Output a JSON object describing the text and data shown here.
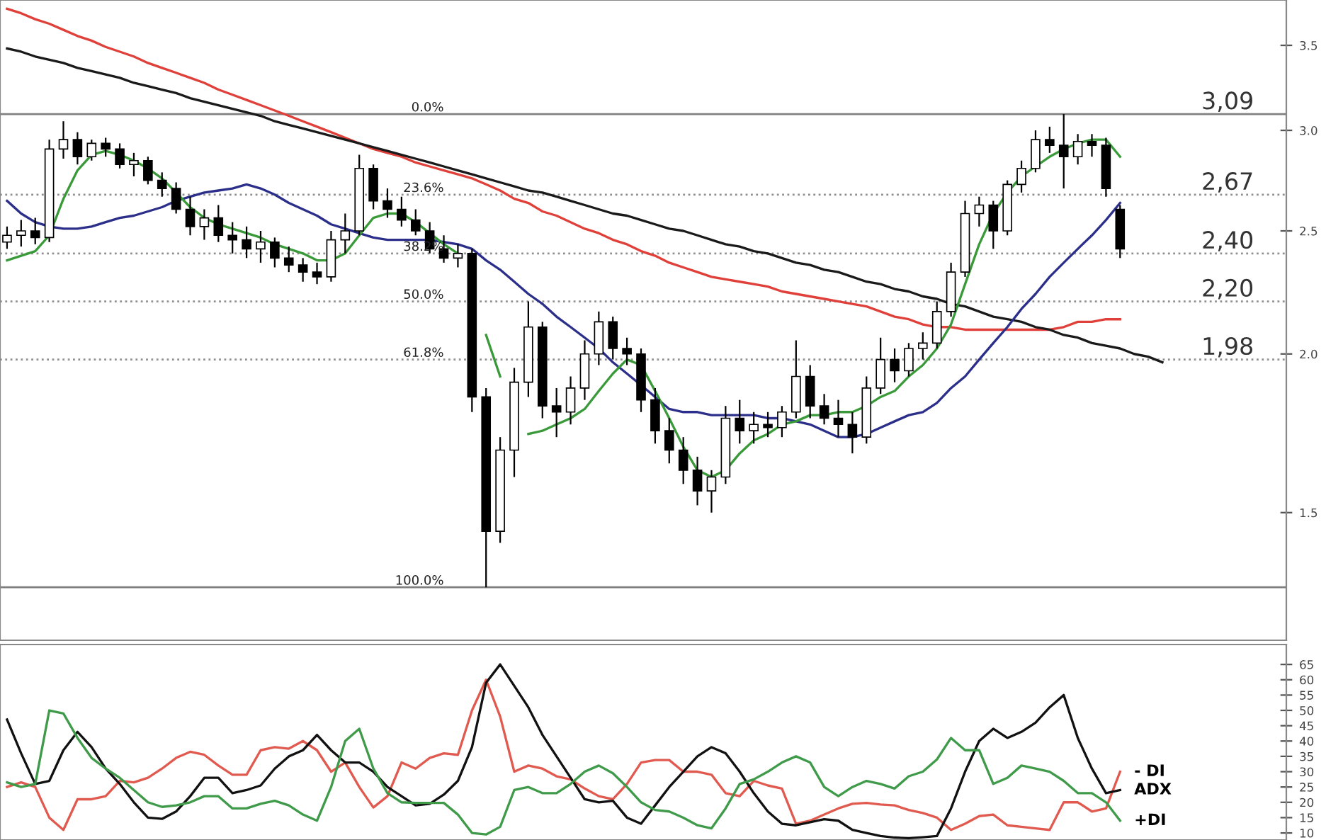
{
  "chart_data": [
    {
      "type": "candlestick",
      "categories": [
        null,
        null,
        null,
        null,
        null,
        null,
        null,
        null,
        null,
        null,
        null,
        null,
        null,
        null,
        null,
        null,
        null,
        null,
        null,
        null,
        null,
        null,
        null,
        null,
        null,
        null,
        null,
        null,
        null,
        null,
        null,
        null,
        null,
        null,
        null,
        null,
        null,
        null,
        null,
        null,
        null,
        null,
        null,
        null,
        null,
        null,
        null,
        null,
        null,
        null,
        null,
        null,
        null,
        null,
        null,
        null,
        null,
        null,
        null,
        null,
        null,
        null,
        null,
        null,
        null,
        null,
        null,
        null,
        null,
        null,
        null,
        null,
        null,
        null,
        null,
        null,
        null,
        null,
        null,
        null,
        null,
        null,
        null
      ],
      "ohlc": [
        [
          2.45,
          2.52,
          2.42,
          2.48
        ],
        [
          2.48,
          2.55,
          2.43,
          2.5
        ],
        [
          2.5,
          2.56,
          2.44,
          2.47
        ],
        [
          2.47,
          2.95,
          2.45,
          2.9
        ],
        [
          2.9,
          3.05,
          2.85,
          2.95
        ],
        [
          2.95,
          2.99,
          2.82,
          2.86
        ],
        [
          2.86,
          2.95,
          2.84,
          2.93
        ],
        [
          2.93,
          2.96,
          2.86,
          2.9
        ],
        [
          2.9,
          2.93,
          2.8,
          2.82
        ],
        [
          2.82,
          2.88,
          2.76,
          2.84
        ],
        [
          2.84,
          2.86,
          2.72,
          2.74
        ],
        [
          2.74,
          2.78,
          2.66,
          2.7
        ],
        [
          2.7,
          2.73,
          2.58,
          2.6
        ],
        [
          2.6,
          2.66,
          2.48,
          2.52
        ],
        [
          2.52,
          2.6,
          2.46,
          2.56
        ],
        [
          2.56,
          2.62,
          2.45,
          2.48
        ],
        [
          2.48,
          2.54,
          2.4,
          2.46
        ],
        [
          2.46,
          2.52,
          2.38,
          2.42
        ],
        [
          2.42,
          2.5,
          2.36,
          2.45
        ],
        [
          2.45,
          2.47,
          2.34,
          2.38
        ],
        [
          2.38,
          2.43,
          2.32,
          2.35
        ],
        [
          2.35,
          2.38,
          2.28,
          2.32
        ],
        [
          2.32,
          2.36,
          2.27,
          2.3
        ],
        [
          2.3,
          2.5,
          2.28,
          2.46
        ],
        [
          2.46,
          2.58,
          2.4,
          2.5
        ],
        [
          2.5,
          2.87,
          2.48,
          2.8
        ],
        [
          2.8,
          2.82,
          2.6,
          2.64
        ],
        [
          2.64,
          2.7,
          2.56,
          2.6
        ],
        [
          2.6,
          2.66,
          2.52,
          2.55
        ],
        [
          2.55,
          2.6,
          2.48,
          2.5
        ],
        [
          2.5,
          2.54,
          2.4,
          2.42
        ],
        [
          2.42,
          2.48,
          2.36,
          2.38
        ],
        [
          2.38,
          2.44,
          2.34,
          2.4
        ],
        [
          2.4,
          2.42,
          1.8,
          1.85
        ],
        [
          1.85,
          1.88,
          1.31,
          1.45
        ],
        [
          1.45,
          1.72,
          1.42,
          1.68
        ],
        [
          1.68,
          1.95,
          1.6,
          1.9
        ],
        [
          1.9,
          2.2,
          1.85,
          2.1
        ],
        [
          2.1,
          2.12,
          1.78,
          1.82
        ],
        [
          1.82,
          1.88,
          1.72,
          1.8
        ],
        [
          1.8,
          1.92,
          1.76,
          1.88
        ],
        [
          1.88,
          2.05,
          1.84,
          2.0
        ],
        [
          2.0,
          2.16,
          1.96,
          2.12
        ],
        [
          2.12,
          2.14,
          1.98,
          2.02
        ],
        [
          2.02,
          2.06,
          1.96,
          2.0
        ],
        [
          2.0,
          2.02,
          1.8,
          1.84
        ],
        [
          1.84,
          1.88,
          1.7,
          1.74
        ],
        [
          1.74,
          1.78,
          1.64,
          1.68
        ],
        [
          1.68,
          1.72,
          1.58,
          1.62
        ],
        [
          1.62,
          1.66,
          1.52,
          1.56
        ],
        [
          1.56,
          1.62,
          1.5,
          1.6
        ],
        [
          1.6,
          1.82,
          1.58,
          1.78
        ],
        [
          1.78,
          1.84,
          1.7,
          1.74
        ],
        [
          1.74,
          1.8,
          1.7,
          1.76
        ],
        [
          1.76,
          1.8,
          1.72,
          1.75
        ],
        [
          1.75,
          1.82,
          1.72,
          1.8
        ],
        [
          1.8,
          2.05,
          1.78,
          1.92
        ],
        [
          1.92,
          1.96,
          1.78,
          1.82
        ],
        [
          1.82,
          1.86,
          1.76,
          1.78
        ],
        [
          1.78,
          1.84,
          1.72,
          1.76
        ],
        [
          1.76,
          1.8,
          1.67,
          1.72
        ],
        [
          1.72,
          1.92,
          1.7,
          1.88
        ],
        [
          1.88,
          2.06,
          1.86,
          1.98
        ],
        [
          1.98,
          2.02,
          1.9,
          1.94
        ],
        [
          1.94,
          2.04,
          1.92,
          2.02
        ],
        [
          2.02,
          2.08,
          1.98,
          2.04
        ],
        [
          2.04,
          2.2,
          2.02,
          2.16
        ],
        [
          2.16,
          2.36,
          2.14,
          2.32
        ],
        [
          2.32,
          2.64,
          2.3,
          2.58
        ],
        [
          2.58,
          2.66,
          2.52,
          2.62
        ],
        [
          2.62,
          2.64,
          2.42,
          2.5
        ],
        [
          2.5,
          2.74,
          2.48,
          2.72
        ],
        [
          2.72,
          2.84,
          2.68,
          2.8
        ],
        [
          2.8,
          3.0,
          2.78,
          2.95
        ],
        [
          2.95,
          3.02,
          2.88,
          2.92
        ],
        [
          2.92,
          3.09,
          2.7,
          2.86
        ],
        [
          2.86,
          2.98,
          2.82,
          2.94
        ],
        [
          2.94,
          2.98,
          2.86,
          2.92
        ],
        [
          2.92,
          2.96,
          2.66,
          2.7
        ],
        [
          2.6,
          2.62,
          2.38,
          2.42
        ],
        null,
        null,
        null
      ],
      "series": [
        {
          "type": "line",
          "color": "#e0403a",
          "values": [
            3.74,
            3.71,
            3.67,
            3.64,
            3.6,
            3.56,
            3.53,
            3.49,
            3.46,
            3.43,
            3.39,
            3.36,
            3.33,
            3.3,
            3.27,
            3.23,
            3.2,
            3.17,
            3.14,
            3.11,
            3.08,
            3.05,
            3.02,
            2.99,
            2.96,
            2.93,
            2.9,
            2.88,
            2.86,
            2.83,
            2.81,
            2.79,
            2.77,
            2.75,
            2.72,
            2.69,
            2.65,
            2.63,
            2.59,
            2.57,
            2.54,
            2.51,
            2.49,
            2.46,
            2.44,
            2.41,
            2.39,
            2.36,
            2.34,
            2.32,
            2.3,
            2.29,
            2.28,
            2.27,
            2.26,
            2.24,
            2.23,
            2.22,
            2.21,
            2.2,
            2.19,
            2.18,
            2.16,
            2.14,
            2.13,
            2.11,
            2.1,
            2.1,
            2.09,
            2.09,
            2.09,
            2.09,
            2.09,
            2.09,
            2.09,
            2.1,
            2.12,
            2.12,
            2.13,
            2.13,
            null,
            null,
            null
          ]
        },
        {
          "type": "line",
          "color": "#1a1a1a",
          "values": [
            3.48,
            3.46,
            3.43,
            3.41,
            3.39,
            3.36,
            3.34,
            3.32,
            3.3,
            3.27,
            3.25,
            3.23,
            3.21,
            3.18,
            3.16,
            3.14,
            3.12,
            3.1,
            3.08,
            3.05,
            3.03,
            3.01,
            2.99,
            2.97,
            2.95,
            2.93,
            2.91,
            2.89,
            2.87,
            2.85,
            2.83,
            2.81,
            2.79,
            2.77,
            2.75,
            2.73,
            2.71,
            2.69,
            2.68,
            2.66,
            2.64,
            2.62,
            2.6,
            2.58,
            2.57,
            2.55,
            2.53,
            2.51,
            2.5,
            2.48,
            2.46,
            2.44,
            2.43,
            2.41,
            2.4,
            2.38,
            2.36,
            2.35,
            2.33,
            2.32,
            2.3,
            2.28,
            2.27,
            2.25,
            2.24,
            2.22,
            2.21,
            2.19,
            2.18,
            2.16,
            2.14,
            2.13,
            2.12,
            2.1,
            2.09,
            2.07,
            2.06,
            2.04,
            2.03,
            2.02,
            2.0,
            1.99,
            1.97
          ]
        },
        {
          "type": "line",
          "color": "#2b2f8a",
          "values": [
            2.64,
            2.58,
            2.54,
            2.52,
            2.51,
            2.51,
            2.52,
            2.54,
            2.56,
            2.57,
            2.59,
            2.61,
            2.64,
            2.66,
            2.68,
            2.69,
            2.7,
            2.72,
            2.7,
            2.67,
            2.63,
            2.6,
            2.57,
            2.53,
            2.51,
            2.49,
            2.47,
            2.46,
            2.46,
            2.46,
            2.46,
            2.45,
            2.44,
            2.42,
            2.37,
            2.33,
            2.28,
            2.23,
            2.19,
            2.14,
            2.1,
            2.06,
            2.02,
            1.97,
            1.93,
            1.89,
            1.85,
            1.81,
            1.8,
            1.8,
            1.79,
            1.79,
            1.79,
            1.79,
            1.78,
            1.78,
            1.77,
            1.76,
            1.74,
            1.72,
            1.72,
            1.73,
            1.75,
            1.77,
            1.79,
            1.8,
            1.83,
            1.88,
            1.92,
            1.98,
            2.04,
            2.1,
            2.17,
            2.23,
            2.3,
            2.36,
            2.42,
            2.48,
            2.55,
            2.63,
            null,
            null,
            null
          ]
        },
        {
          "type": "line",
          "color": "#3a9a3a",
          "values": [
            2.37,
            2.39,
            2.41,
            2.48,
            2.65,
            2.79,
            2.87,
            2.89,
            2.87,
            2.84,
            2.8,
            2.75,
            2.68,
            2.61,
            2.56,
            2.53,
            2.51,
            2.49,
            2.47,
            2.44,
            2.42,
            2.4,
            2.37,
            2.37,
            2.4,
            2.48,
            2.56,
            2.58,
            2.58,
            2.54,
            2.49,
            2.44,
            2.4,
            null,
            2.07,
            1.92,
            null,
            1.73,
            1.74,
            1.76,
            1.78,
            1.81,
            1.87,
            1.93,
            1.98,
            1.96,
            1.87,
            1.78,
            1.69,
            1.62,
            1.6,
            1.62,
            1.67,
            1.71,
            1.73,
            1.76,
            1.77,
            1.79,
            1.79,
            1.8,
            1.8,
            1.82,
            1.85,
            1.87,
            1.92,
            1.96,
            2.02,
            2.11,
            2.27,
            2.44,
            2.58,
            2.68,
            2.76,
            2.81,
            2.86,
            2.9,
            2.93,
            2.95,
            2.95,
            2.86,
            null,
            null,
            null
          ]
        }
      ],
      "log": "y",
      "ylim": [
        1.19,
        3.8
      ],
      "yticks": [
        1.5,
        {
          "value": 2,
          "label": "2.0"
        },
        2.5,
        {
          "value": 3,
          "label": "3.0"
        },
        3.5
      ],
      "ref_lines": [
        {
          "axis": "y",
          "value": 3.09,
          "label": "3,09",
          "color": "#808080",
          "line_style": "solid"
        },
        {
          "axis": "y",
          "value": 2.67,
          "label": "2,67",
          "color": "#909090",
          "line_style": "dotted"
        },
        {
          "axis": "y",
          "value": 2.4,
          "label": "2,40",
          "color": "#909090",
          "line_style": "dotted"
        },
        {
          "axis": "y",
          "value": 2.2,
          "label": "2,20",
          "color": "#909090",
          "line_style": "dotted"
        },
        {
          "axis": "y",
          "value": 1.98,
          "label": "1,98",
          "color": "#909090",
          "line_style": "dotted"
        },
        {
          "axis": "y",
          "value": 1.31,
          "color": "#808080",
          "line_style": "solid"
        }
      ],
      "annotations": [
        {
          "text": "0.0%",
          "y": 3.09
        },
        {
          "text": "23.6%",
          "y": 2.67
        },
        {
          "text": "38.2%",
          "y": 2.4
        },
        {
          "text": "50.0%",
          "y": 2.2
        },
        {
          "text": "61.8%",
          "y": 1.98
        },
        {
          "text": "100.0%",
          "y": 1.31
        }
      ],
      "tick_labels": "y"
    },
    {
      "type": "line",
      "categories": [
        null,
        null,
        null,
        null,
        null,
        null,
        null,
        null,
        null,
        null,
        null,
        null,
        null,
        null,
        null,
        null,
        null,
        null,
        null,
        null,
        null,
        null,
        null,
        null,
        null,
        null,
        null,
        null,
        null,
        null,
        null,
        null,
        null,
        null,
        null,
        null,
        null,
        null,
        null,
        null,
        null,
        null,
        null,
        null,
        null,
        null,
        null,
        null,
        null,
        null,
        null,
        null,
        null,
        null,
        null,
        null,
        null,
        null,
        null,
        null,
        null,
        null,
        null,
        null,
        null,
        null,
        null,
        null,
        null,
        null,
        null,
        null,
        null,
        null,
        null,
        null,
        null,
        null,
        null,
        null,
        null,
        null,
        null
      ],
      "series": [
        {
          "name": "- DI",
          "color": "#e05a50",
          "values": [
            25,
            26.5,
            25,
            15,
            11,
            21,
            21,
            22,
            27,
            26.5,
            28,
            31,
            34.5,
            36.5,
            35.5,
            32,
            29,
            29,
            37,
            38,
            37.5,
            40,
            37,
            30,
            33,
            25,
            18.3,
            22,
            33,
            31,
            34.5,
            36,
            35.5,
            50,
            60,
            48,
            30,
            32,
            31,
            28.5,
            27.5,
            24.5,
            22,
            21,
            26,
            33,
            33.8,
            33.8,
            30,
            30,
            29,
            23,
            22,
            27,
            25.5,
            24.5,
            13,
            14,
            16,
            18,
            19.5,
            19.8,
            19.3,
            19,
            17.5,
            16.5,
            15,
            11,
            13,
            15.5,
            16,
            12.5,
            12,
            11.5,
            11,
            20,
            20,
            17,
            18,
            30,
            null,
            null,
            null
          ]
        },
        {
          "name": "ADX",
          "color": "#111111",
          "values": [
            47,
            36,
            26,
            27,
            37,
            43,
            38,
            31,
            26,
            20,
            15,
            14.6,
            17,
            22,
            28,
            28,
            23,
            24,
            25.5,
            31,
            35,
            37,
            42,
            37,
            33,
            33,
            30,
            25,
            22,
            19,
            19.5,
            22.5,
            27,
            38,
            59,
            65,
            58,
            51,
            42,
            35,
            28,
            21,
            20,
            20.5,
            15,
            13,
            19,
            25,
            30,
            35,
            38,
            36,
            30,
            23,
            17,
            13,
            12.5,
            13.5,
            14.5,
            14,
            11,
            10,
            9,
            8.5,
            8.3,
            8.6,
            9,
            18,
            30,
            40,
            44,
            41,
            43,
            46,
            51,
            55,
            41,
            31,
            23,
            24,
            null,
            null,
            null
          ]
        },
        {
          "name": "+DI",
          "color": "#3f9a4a",
          "values": [
            26.5,
            25,
            26,
            50,
            49,
            41,
            34.5,
            31,
            28,
            24,
            20,
            18.5,
            19,
            20,
            22,
            22,
            18,
            18,
            19.5,
            20.5,
            19,
            16,
            14,
            25,
            40,
            44,
            31,
            23,
            20,
            19.8,
            19.8,
            19.8,
            16,
            10,
            9.5,
            12,
            24,
            25,
            23,
            23,
            26,
            30,
            32,
            29.5,
            25,
            20,
            17.5,
            17,
            15,
            12.5,
            11.5,
            18,
            26,
            27.5,
            30,
            33,
            35,
            33,
            25,
            22,
            25,
            27,
            26,
            24.5,
            28.5,
            30,
            34,
            41,
            37,
            37,
            26,
            28,
            32,
            31,
            30,
            27,
            23,
            23,
            20,
            14,
            null,
            null,
            null
          ]
        }
      ],
      "ylim": [
        7.7,
        71.5
      ],
      "yticks": [
        10,
        15,
        20,
        25,
        30,
        35,
        40,
        45,
        50,
        55,
        60,
        65
      ],
      "tick_labels": "y"
    }
  ]
}
